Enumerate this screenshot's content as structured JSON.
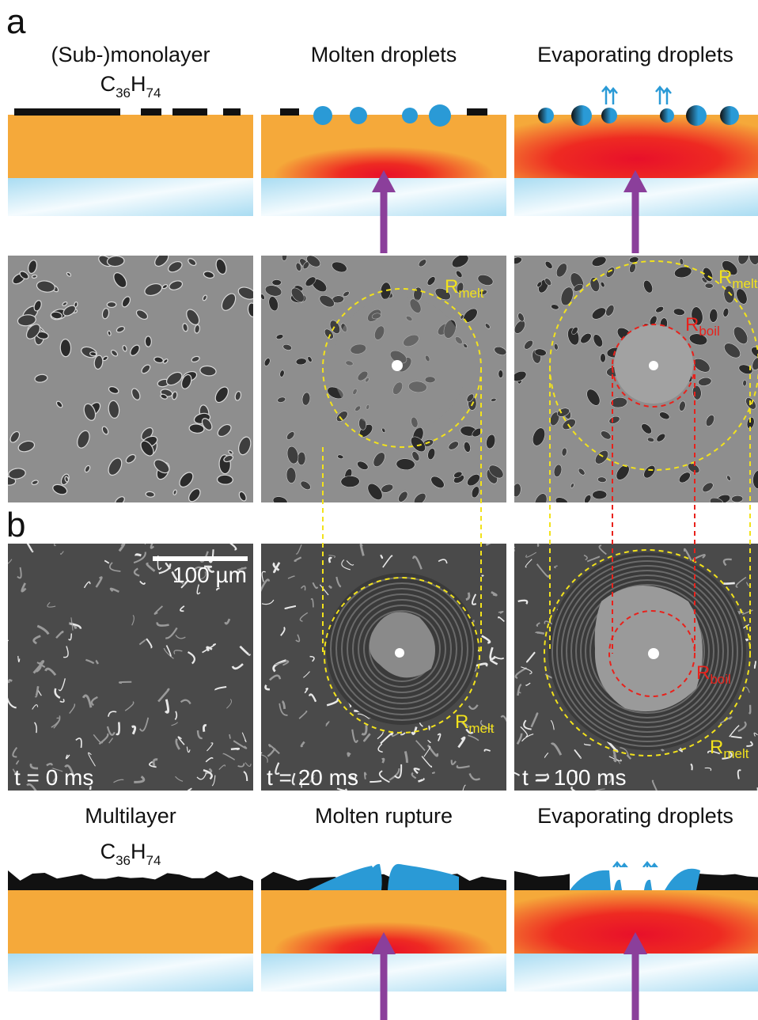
{
  "panel_a": {
    "label": "a",
    "columns": [
      {
        "title": "(Sub-)monolayer",
        "formula": [
          {
            "element": "C",
            "count": "36"
          },
          {
            "element": "H",
            "count": "74"
          }
        ]
      },
      {
        "title": "Molten droplets"
      },
      {
        "title": "Evaporating droplets"
      }
    ]
  },
  "radii": {
    "melt": {
      "symbol": "R",
      "subscript": "melt"
    },
    "boil": {
      "symbol": "R",
      "subscript": "boil"
    }
  },
  "panel_b": {
    "label": "b",
    "scale_bar": "100 µm",
    "times": [
      "t = 0 ms",
      "t = 20 ms",
      "t = 100 ms"
    ],
    "columns": [
      {
        "title": "Multilayer",
        "formula": [
          {
            "element": "C",
            "count": "36"
          },
          {
            "element": "H",
            "count": "74"
          }
        ]
      },
      {
        "title": "Molten rupture"
      },
      {
        "title": "Evaporating droplets"
      }
    ]
  }
}
